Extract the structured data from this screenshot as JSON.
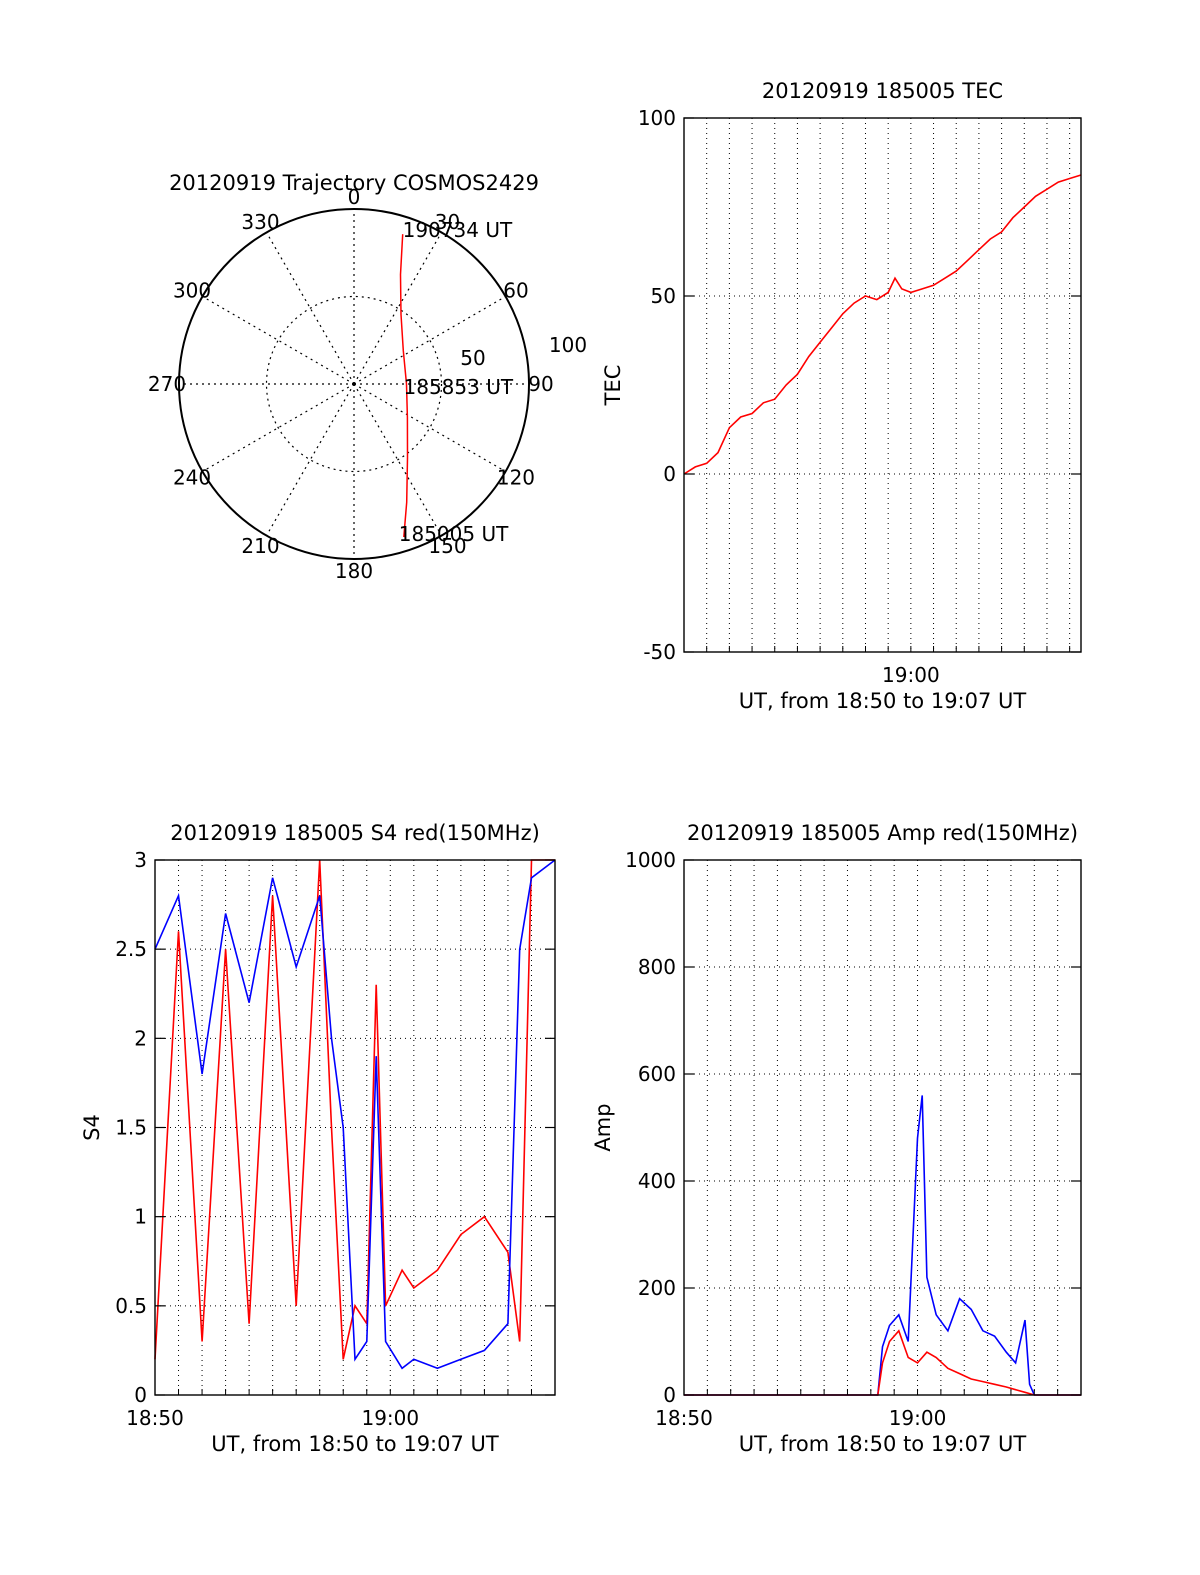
{
  "colors": {
    "series_a": "#ff0000",
    "series_b": "#0000ff",
    "axes": "#000000",
    "grid": "#000000"
  },
  "chart_data": [
    {
      "id": "trajectory",
      "type": "polar",
      "title": "20120919 Trajectory COSMOS2429",
      "angle_ticks": [
        "0",
        "30",
        "60",
        "90",
        "120",
        "150",
        "180",
        "210",
        "240",
        "270",
        "300",
        "330"
      ],
      "radial_ticks": [
        "50",
        "100"
      ],
      "radial_ring_values": [
        50,
        100
      ],
      "grid": true,
      "track": [
        {
          "az": 18.0,
          "zen": 90
        },
        {
          "az": 23.0,
          "zen": 68
        },
        {
          "az": 34.0,
          "zen": 48
        },
        {
          "az": 56.0,
          "zen": 34
        },
        {
          "az": 90.0,
          "zen": 30
        },
        {
          "az": 122.0,
          "zen": 36
        },
        {
          "az": 144.0,
          "zen": 52
        },
        {
          "az": 156.0,
          "zen": 74
        },
        {
          "az": 162.0,
          "zen": 92
        }
      ],
      "annotations": [
        {
          "text": "190734 UT",
          "az": 18.0,
          "zen": 90
        },
        {
          "text": "185853 UT",
          "az": 90.0,
          "zen": 30
        },
        {
          "text": "185005 UT",
          "az": 162.0,
          "zen": 92
        }
      ]
    },
    {
      "id": "tec",
      "type": "line",
      "title": "20120919 185005 TEC",
      "xlabel": "UT, from 18:50 to 19:07 UT",
      "ylabel": "TEC",
      "xlim": [
        0,
        17.5
      ],
      "ylim": [
        -50,
        100
      ],
      "y_ticks": [
        -50,
        0,
        50,
        100
      ],
      "x_tick_labels": [
        {
          "x": 10,
          "label": "19:00"
        }
      ],
      "grid": true,
      "series": [
        {
          "values_xy": [
            [
              0,
              0
            ],
            [
              0.5,
              2
            ],
            [
              1,
              3
            ],
            [
              1.5,
              6
            ],
            [
              2,
              13
            ],
            [
              2.5,
              16
            ],
            [
              3,
              17
            ],
            [
              3.5,
              20
            ],
            [
              4,
              21
            ],
            [
              4.5,
              25
            ],
            [
              5,
              28
            ],
            [
              5.5,
              33
            ],
            [
              6,
              37
            ],
            [
              6.5,
              41
            ],
            [
              7,
              45
            ],
            [
              7.5,
              48
            ],
            [
              8,
              50
            ],
            [
              8.5,
              49
            ],
            [
              9,
              51
            ],
            [
              9.3,
              55
            ],
            [
              9.6,
              52
            ],
            [
              10,
              51
            ],
            [
              10.5,
              52
            ],
            [
              11,
              53
            ],
            [
              11.5,
              55
            ],
            [
              12,
              57
            ],
            [
              12.5,
              60
            ],
            [
              13,
              63
            ],
            [
              13.5,
              66
            ],
            [
              14,
              68
            ],
            [
              14.5,
              72
            ],
            [
              15,
              75
            ],
            [
              15.5,
              78
            ],
            [
              16,
              80
            ],
            [
              16.5,
              82
            ],
            [
              17,
              83
            ],
            [
              17.5,
              84
            ]
          ]
        }
      ]
    },
    {
      "id": "s4",
      "type": "line",
      "title": "20120919 185005 S4 red(150MHz)",
      "xlabel": "UT, from 18:50 to 19:07 UT",
      "ylabel": "S4",
      "xlim": [
        0,
        17
      ],
      "ylim": [
        0,
        3
      ],
      "y_ticks": [
        "0",
        "0.5",
        "1",
        "1.5",
        "2",
        "2.5",
        "3"
      ],
      "y_tick_values": [
        0,
        0.5,
        1,
        1.5,
        2,
        2.5,
        3
      ],
      "x_tick_labels": [
        {
          "x": 0,
          "label": "18:50"
        },
        {
          "x": 10,
          "label": "19:00"
        }
      ],
      "grid": true,
      "series": [
        {
          "color_key": "series_a",
          "values_xy": [
            [
              0,
              0.2
            ],
            [
              1,
              2.6
            ],
            [
              2,
              0.3
            ],
            [
              3,
              2.5
            ],
            [
              4,
              0.4
            ],
            [
              5,
              2.8
            ],
            [
              6,
              0.5
            ],
            [
              7,
              3.0
            ],
            [
              7.5,
              1.5
            ],
            [
              8,
              0.2
            ],
            [
              8.5,
              0.5
            ],
            [
              9,
              0.4
            ],
            [
              9.4,
              2.3
            ],
            [
              9.8,
              0.5
            ],
            [
              10.5,
              0.7
            ],
            [
              11,
              0.6
            ],
            [
              12,
              0.7
            ],
            [
              13,
              0.9
            ],
            [
              14,
              1.0
            ],
            [
              15,
              0.8
            ],
            [
              15.5,
              0.3
            ],
            [
              16,
              3.0
            ],
            [
              17,
              3.0
            ]
          ]
        },
        {
          "color_key": "series_b",
          "values_xy": [
            [
              0,
              2.5
            ],
            [
              1,
              2.8
            ],
            [
              2,
              1.8
            ],
            [
              3,
              2.7
            ],
            [
              4,
              2.2
            ],
            [
              5,
              2.9
            ],
            [
              6,
              2.4
            ],
            [
              7,
              2.8
            ],
            [
              7.5,
              2.0
            ],
            [
              8,
              1.5
            ],
            [
              8.5,
              0.2
            ],
            [
              9,
              0.3
            ],
            [
              9.4,
              1.9
            ],
            [
              9.8,
              0.3
            ],
            [
              10.5,
              0.15
            ],
            [
              11,
              0.2
            ],
            [
              12,
              0.15
            ],
            [
              13,
              0.2
            ],
            [
              14,
              0.25
            ],
            [
              15,
              0.4
            ],
            [
              15.5,
              2.5
            ],
            [
              16,
              2.9
            ],
            [
              17,
              3.0
            ]
          ]
        }
      ]
    },
    {
      "id": "amp",
      "type": "line",
      "title": "20120919 185005 Amp red(150MHz)",
      "xlabel": "UT, from 18:50 to 19:07 UT",
      "ylabel": "Amp",
      "xlim": [
        0,
        17
      ],
      "ylim": [
        0,
        1000
      ],
      "y_ticks": [
        0,
        200,
        400,
        600,
        800,
        1000
      ],
      "x_tick_labels": [
        {
          "x": 0,
          "label": "18:50"
        },
        {
          "x": 10,
          "label": "19:00"
        }
      ],
      "grid": true,
      "series": [
        {
          "color_key": "series_b",
          "values_xy": [
            [
              0,
              0
            ],
            [
              8.3,
              0
            ],
            [
              8.5,
              90
            ],
            [
              8.8,
              130
            ],
            [
              9.2,
              150
            ],
            [
              9.6,
              100
            ],
            [
              10.0,
              480
            ],
            [
              10.2,
              560
            ],
            [
              10.4,
              220
            ],
            [
              10.8,
              150
            ],
            [
              11.3,
              120
            ],
            [
              11.8,
              180
            ],
            [
              12.3,
              160
            ],
            [
              12.8,
              120
            ],
            [
              13.3,
              110
            ],
            [
              13.8,
              80
            ],
            [
              14.2,
              60
            ],
            [
              14.6,
              140
            ],
            [
              14.8,
              20
            ],
            [
              15.0,
              0
            ],
            [
              17,
              0
            ]
          ]
        },
        {
          "color_key": "series_a",
          "values_xy": [
            [
              0,
              0
            ],
            [
              8.3,
              0
            ],
            [
              8.5,
              60
            ],
            [
              8.8,
              100
            ],
            [
              9.2,
              120
            ],
            [
              9.6,
              70
            ],
            [
              10.0,
              60
            ],
            [
              10.4,
              80
            ],
            [
              10.8,
              70
            ],
            [
              11.3,
              50
            ],
            [
              11.8,
              40
            ],
            [
              12.3,
              30
            ],
            [
              12.8,
              25
            ],
            [
              13.3,
              20
            ],
            [
              13.8,
              15
            ],
            [
              14.2,
              10
            ],
            [
              14.6,
              5
            ],
            [
              15.0,
              0
            ],
            [
              17,
              0
            ]
          ]
        }
      ]
    }
  ]
}
